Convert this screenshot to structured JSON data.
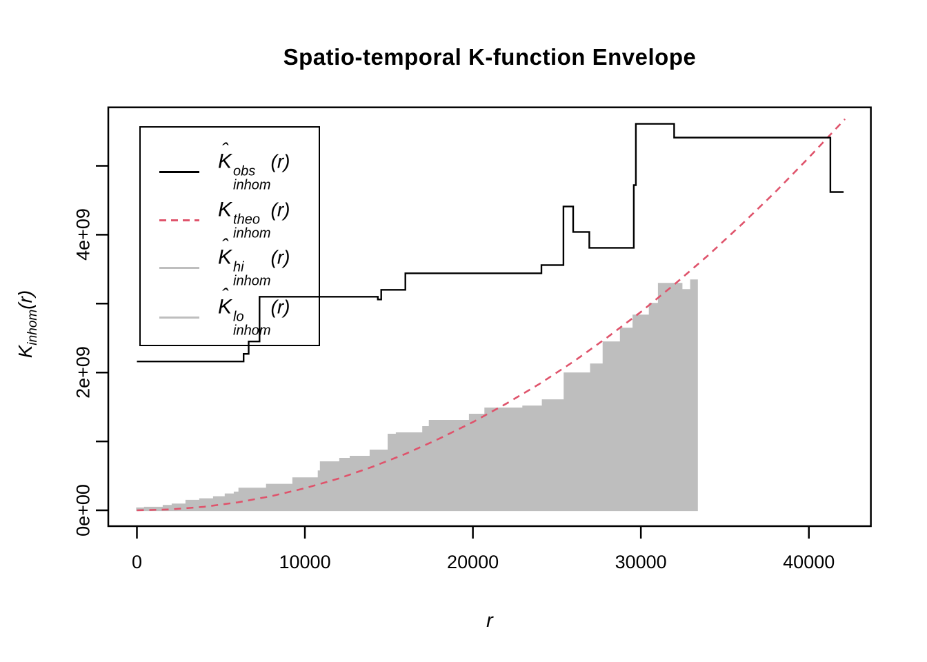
{
  "title": "Spatio-temporal K-function Envelope",
  "axes": {
    "x": {
      "label": "r",
      "ticks": [
        {
          "value": 0,
          "label": "0"
        },
        {
          "value": 10000,
          "label": "10000"
        },
        {
          "value": 20000,
          "label": "20000"
        },
        {
          "value": 30000,
          "label": "30000"
        },
        {
          "value": 40000,
          "label": "40000"
        }
      ]
    },
    "y": {
      "label_main": "K",
      "label_sub": "inhom",
      "label_tail": "(r)",
      "ticks": [
        {
          "value": 0,
          "label": "0e+00"
        },
        {
          "value": 1000000000.0,
          "label": ""
        },
        {
          "value": 2000000000.0,
          "label": "2e+09"
        },
        {
          "value": 3000000000.0,
          "label": ""
        },
        {
          "value": 4000000000.0,
          "label": "4e+09"
        },
        {
          "value": 5000000000.0,
          "label": ""
        }
      ]
    }
  },
  "legend": {
    "items": [
      {
        "id": "obs",
        "hat": true,
        "base": "K",
        "sup": "obs",
        "sub": "inhom",
        "tail": "(r)",
        "line_color": "#000000",
        "line_style": "solid"
      },
      {
        "id": "theo",
        "hat": false,
        "base": "K",
        "sup": "theo",
        "sub": "inhom",
        "tail": "(r)",
        "line_color": "#DF536B",
        "line_style": "dashed"
      },
      {
        "id": "hi",
        "hat": true,
        "base": "K",
        "sup": "hi",
        "sub": "inhom",
        "tail": "(r)",
        "line_color": "#BEBEBE",
        "line_style": "solid"
      },
      {
        "id": "lo",
        "hat": true,
        "base": "K",
        "sup": "lo",
        "sub": "inhom",
        "tail": "(r)",
        "line_color": "#BEBEBE",
        "line_style": "solid"
      }
    ]
  },
  "colors": {
    "observed": "#000000",
    "theoretical": "#DF536B",
    "envelope_fill": "#BEBEBE",
    "axis": "#000000",
    "background": "#FFFFFF"
  },
  "chart_data": {
    "type": "line",
    "title": "Spatio-temporal K-function Envelope",
    "xlabel": "r",
    "ylabel": "K_inhom(r)",
    "xlim": [
      -1700,
      43700
    ],
    "ylim": [
      -230000000.0,
      5850000000.0
    ],
    "grid": false,
    "legend_position": "top-left",
    "x_ticks": [
      0,
      10000,
      20000,
      30000,
      40000
    ],
    "y_ticks": [
      0,
      1000000000.0,
      2000000000.0,
      3000000000.0,
      4000000000.0,
      5000000000.0
    ],
    "y_tick_labels": [
      "0e+00",
      "",
      "2e+09",
      "",
      "4e+09",
      ""
    ],
    "series": [
      {
        "name": "K_inhom_obs",
        "legend": "hat-K^obs_inhom(r)",
        "type": "step",
        "color": "#000000",
        "linestyle": "solid",
        "end_r": 42070,
        "levels": [
          [
            0,
            2160000000.0
          ],
          [
            6350,
            2270000000.0
          ],
          [
            6650,
            2450000000.0
          ],
          [
            7300,
            3100000000.0
          ],
          [
            14340,
            3060000000.0
          ],
          [
            14545,
            3200000000.0
          ],
          [
            15980,
            3440000000.0
          ],
          [
            24080,
            3560000000.0
          ],
          [
            25390,
            4410000000.0
          ],
          [
            25970,
            4040000000.0
          ],
          [
            26930,
            3810000000.0
          ],
          [
            29580,
            4720000000.0
          ],
          [
            29700,
            5610000000.0
          ],
          [
            31980,
            5410000000.0
          ],
          [
            41280,
            4620000000.0
          ]
        ]
      },
      {
        "name": "K_inhom_theo",
        "legend": "K^theo_inhom(r)",
        "type": "line",
        "color": "#DF536B",
        "linestyle": "dashed",
        "points": [
          [
            0,
            0
          ],
          [
            2000,
            13000000.0
          ],
          [
            4000,
            51000000.0
          ],
          [
            6000,
            115000000.0
          ],
          [
            8000,
            205000000.0
          ],
          [
            10000,
            320000000.0
          ],
          [
            12000,
            460000000.0
          ],
          [
            14000,
            630000000.0
          ],
          [
            16000,
            820000000.0
          ],
          [
            18000,
            1040000000.0
          ],
          [
            20000,
            1280000000.0
          ],
          [
            22000,
            1550000000.0
          ],
          [
            24000,
            1840000000.0
          ],
          [
            26000,
            2160000000.0
          ],
          [
            28000,
            2510000000.0
          ],
          [
            30000,
            2880000000.0
          ],
          [
            32000,
            3280000000.0
          ],
          [
            34000,
            3700000000.0
          ],
          [
            36000,
            4150000000.0
          ],
          [
            38000,
            4620000000.0
          ],
          [
            40000,
            5120000000.0
          ],
          [
            42150,
            5680000000.0
          ]
        ]
      },
      {
        "name": "K_inhom_hi",
        "legend": "hat-K^hi_inhom(r)",
        "type": "step",
        "color": "#BEBEBE",
        "linestyle": "solid",
        "fill": "envelope-upper",
        "end_r": 33350,
        "levels": [
          [
            0,
            30000000.0
          ],
          [
            470,
            40000000.0
          ],
          [
            1580,
            67000000.0
          ],
          [
            2115,
            87000000.0
          ],
          [
            2935,
            140000000.0
          ],
          [
            3755,
            163000000.0
          ],
          [
            4580,
            193000000.0
          ],
          [
            5270,
            233000000.0
          ],
          [
            5810,
            260000000.0
          ],
          [
            6090,
            317000000.0
          ],
          [
            7730,
            373000000.0
          ],
          [
            9300,
            467000000.0
          ],
          [
            10810,
            567000000.0
          ],
          [
            10940,
            700000000.0
          ],
          [
            12090,
            750000000.0
          ],
          [
            12710,
            780000000.0
          ],
          [
            13900,
            870000000.0
          ],
          [
            14970,
            1100000000.0
          ],
          [
            15460,
            1120000000.0
          ],
          [
            17030,
            1210000000.0
          ],
          [
            17420,
            1300000000.0
          ],
          [
            19810,
            1390000000.0
          ],
          [
            20730,
            1480000000.0
          ],
          [
            22990,
            1510000000.0
          ],
          [
            24150,
            1600000000.0
          ],
          [
            25450,
            1990000000.0
          ],
          [
            27020,
            2120000000.0
          ],
          [
            27770,
            2440000000.0
          ],
          [
            28800,
            2640000000.0
          ],
          [
            29550,
            2830000000.0
          ],
          [
            30520,
            3000000000.0
          ],
          [
            31060,
            3290000000.0
          ],
          [
            32430,
            3200000000.0
          ],
          [
            32980,
            3340000000.0
          ]
        ]
      },
      {
        "name": "K_inhom_lo",
        "legend": "hat-K^lo_inhom(r)",
        "type": "step",
        "color": "#BEBEBE",
        "linestyle": "solid",
        "fill": "envelope-lower",
        "end_r": 33350,
        "levels": [
          [
            0,
            0
          ]
        ]
      }
    ]
  }
}
